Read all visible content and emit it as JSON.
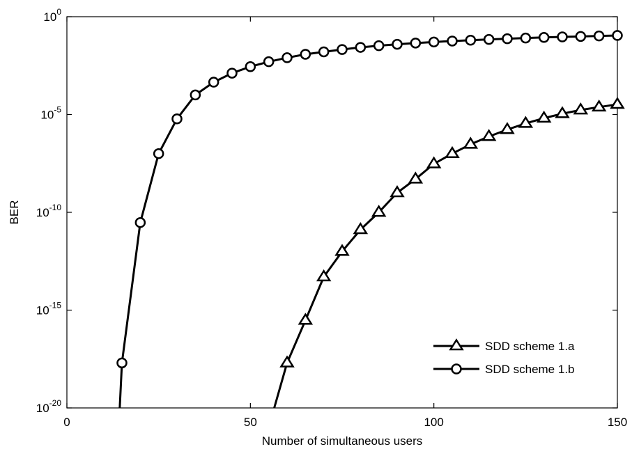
{
  "chart_data": {
    "type": "line",
    "xlabel": "Number of simultaneous users",
    "ylabel": "BER",
    "xlim": [
      0,
      150
    ],
    "ylim": [
      1e-20,
      1
    ],
    "yscale": "log",
    "grid": false,
    "legend_position": "bottom-right",
    "x_ticks": [
      {
        "value": 0,
        "label": "0"
      },
      {
        "value": 50,
        "label": "50"
      },
      {
        "value": 100,
        "label": "100"
      },
      {
        "value": 150,
        "label": "150"
      }
    ],
    "y_ticks": [
      {
        "value": 0,
        "base": "10",
        "exp": "0"
      },
      {
        "value": -5,
        "base": "10",
        "exp": "-5"
      },
      {
        "value": -10,
        "base": "10",
        "exp": "-10"
      },
      {
        "value": -15,
        "base": "10",
        "exp": "-15"
      },
      {
        "value": -20,
        "base": "10",
        "exp": "-20"
      }
    ],
    "series": [
      {
        "name": "SDD scheme 1.a",
        "marker": "triangle",
        "color": "#000000",
        "curve_start": {
          "x": 56.5,
          "y": 1e-20
        },
        "x": [
          60,
          65,
          70,
          75,
          80,
          85,
          90,
          95,
          100,
          105,
          110,
          115,
          120,
          125,
          130,
          135,
          140,
          145,
          150
        ],
        "y": [
          2e-18,
          3e-16,
          5e-14,
          1e-12,
          1.3e-11,
          1e-10,
          1e-09,
          5e-09,
          3e-08,
          1e-07,
          3e-07,
          7.5e-07,
          1.7e-06,
          3.5e-06,
          6.5e-06,
          1.1e-05,
          1.7e-05,
          2.4e-05,
          3.3e-05
        ]
      },
      {
        "name": "SDD scheme 1.b",
        "marker": "circle",
        "color": "#000000",
        "curve_start": {
          "x": 14.4,
          "y": 1e-20
        },
        "x": [
          15,
          20,
          25,
          30,
          35,
          40,
          45,
          50,
          55,
          60,
          65,
          70,
          75,
          80,
          85,
          90,
          95,
          100,
          105,
          110,
          115,
          120,
          125,
          130,
          135,
          140,
          145,
          150
        ],
        "y": [
          2e-18,
          3e-11,
          1e-07,
          6e-06,
          0.0001,
          0.00045,
          0.0013,
          0.0028,
          0.005,
          0.008,
          0.012,
          0.016,
          0.021,
          0.027,
          0.033,
          0.039,
          0.045,
          0.051,
          0.057,
          0.063,
          0.069,
          0.075,
          0.081,
          0.087,
          0.093,
          0.098,
          0.104,
          0.11
        ]
      }
    ]
  }
}
